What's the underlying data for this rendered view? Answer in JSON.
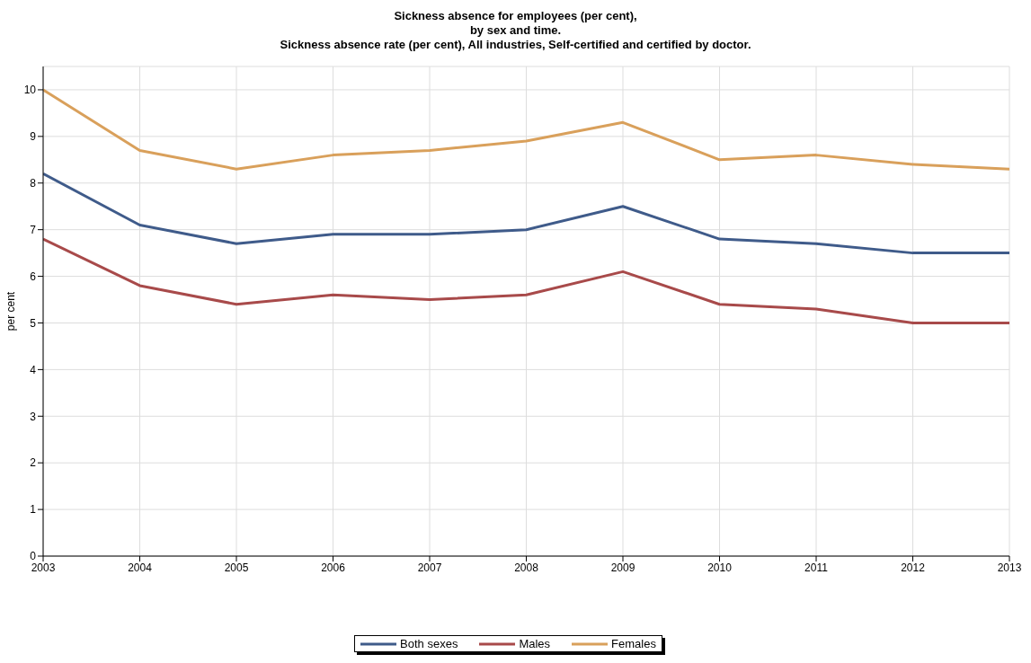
{
  "chart_data": {
    "type": "line",
    "title": "Sickness absence for employees (per cent),\nby sex and time.\nSickness absence rate (per cent), All industries, Self-certified and certified by doctor.",
    "ylabel": "per cent",
    "x": [
      2003,
      2004,
      2005,
      2006,
      2007,
      2008,
      2009,
      2010,
      2011,
      2012,
      2013
    ],
    "xlim": [
      2003,
      2013
    ],
    "xticks": [
      2003,
      2004,
      2005,
      2006,
      2007,
      2008,
      2009,
      2010,
      2011,
      2012,
      2013
    ],
    "ylim": [
      0,
      10.5
    ],
    "yticks": [
      0,
      1,
      2,
      3,
      4,
      5,
      6,
      7,
      8,
      9,
      10
    ],
    "series": [
      {
        "name": "Both sexes",
        "color": "#3f5b8a",
        "values": [
          8.2,
          7.1,
          6.7,
          6.9,
          6.9,
          7.0,
          7.5,
          6.8,
          6.7,
          6.5,
          6.5
        ]
      },
      {
        "name": "Males",
        "color": "#a84a4a",
        "values": [
          6.8,
          5.8,
          5.4,
          5.6,
          5.5,
          5.6,
          6.1,
          5.4,
          5.3,
          5.0,
          5.0
        ]
      },
      {
        "name": "Females",
        "color": "#d9a05b",
        "values": [
          10.0,
          8.7,
          8.3,
          8.6,
          8.7,
          8.9,
          9.3,
          8.5,
          8.6,
          8.4,
          8.3
        ]
      }
    ],
    "grid": true,
    "legend": "bottom",
    "marker": "none",
    "line_style": "solid"
  }
}
